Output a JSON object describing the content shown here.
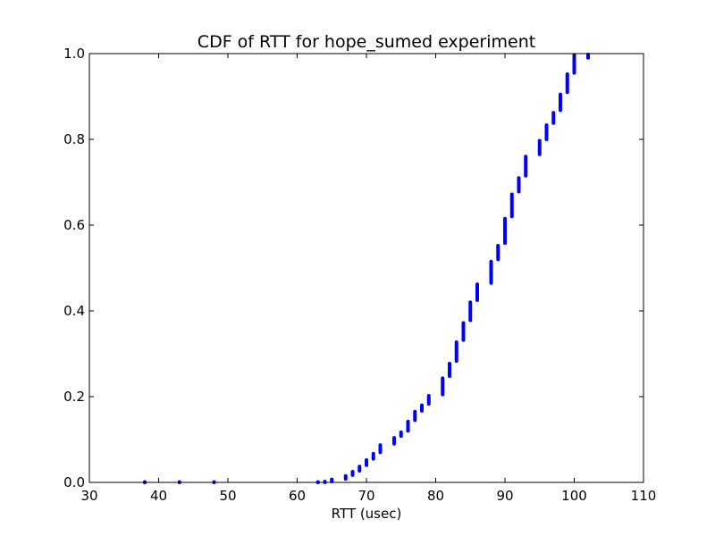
{
  "chart_data": {
    "type": "scatter",
    "title": "CDF of RTT for hope_sumed experiment",
    "xlabel": "RTT (usec)",
    "ylabel": "",
    "xlim": [
      30,
      110
    ],
    "ylim": [
      0.0,
      1.0
    ],
    "x_ticks": [
      "30",
      "40",
      "50",
      "60",
      "70",
      "80",
      "90",
      "100",
      "110"
    ],
    "y_ticks": [
      "0.0",
      "0.2",
      "0.4",
      "0.6",
      "0.8",
      "1.0"
    ],
    "grid": false,
    "legend": false,
    "color": "#0000ff",
    "series": [
      {
        "ranges": [
          {
            "x": 38,
            "y": [
              0.0,
              0.0
            ]
          },
          {
            "x": 43,
            "y": [
              0.0,
              0.0
            ]
          },
          {
            "x": 48,
            "y": [
              0.0,
              0.0
            ]
          },
          {
            "x": 63,
            "y": [
              0.0,
              0.0
            ]
          },
          {
            "x": 64,
            "y": [
              0.0,
              0.002
            ]
          },
          {
            "x": 65,
            "y": [
              0.002,
              0.007
            ]
          },
          {
            "x": 67,
            "y": [
              0.008,
              0.015
            ]
          },
          {
            "x": 68,
            "y": [
              0.017,
              0.025
            ]
          },
          {
            "x": 69,
            "y": [
              0.027,
              0.037
            ]
          },
          {
            "x": 70,
            "y": [
              0.04,
              0.052
            ]
          },
          {
            "x": 71,
            "y": [
              0.055,
              0.067
            ]
          },
          {
            "x": 72,
            "y": [
              0.07,
              0.087
            ]
          },
          {
            "x": 74,
            "y": [
              0.09,
              0.104
            ]
          },
          {
            "x": 75,
            "y": [
              0.108,
              0.117
            ]
          },
          {
            "x": 76,
            "y": [
              0.12,
              0.142
            ]
          },
          {
            "x": 77,
            "y": [
              0.145,
              0.165
            ]
          },
          {
            "x": 78,
            "y": [
              0.167,
              0.18
            ]
          },
          {
            "x": 79,
            "y": [
              0.183,
              0.202
            ]
          },
          {
            "x": 81,
            "y": [
              0.205,
              0.243
            ]
          },
          {
            "x": 82,
            "y": [
              0.248,
              0.277
            ]
          },
          {
            "x": 83,
            "y": [
              0.283,
              0.327
            ]
          },
          {
            "x": 84,
            "y": [
              0.332,
              0.372
            ]
          },
          {
            "x": 85,
            "y": [
              0.378,
              0.42
            ]
          },
          {
            "x": 86,
            "y": [
              0.425,
              0.462
            ]
          },
          {
            "x": 88,
            "y": [
              0.465,
              0.515
            ]
          },
          {
            "x": 89,
            "y": [
              0.52,
              0.552
            ]
          },
          {
            "x": 90,
            "y": [
              0.558,
              0.615
            ]
          },
          {
            "x": 91,
            "y": [
              0.62,
              0.672
            ]
          },
          {
            "x": 92,
            "y": [
              0.678,
              0.71
            ]
          },
          {
            "x": 93,
            "y": [
              0.715,
              0.76
            ]
          },
          {
            "x": 95,
            "y": [
              0.765,
              0.797
            ]
          },
          {
            "x": 96,
            "y": [
              0.8,
              0.833
            ]
          },
          {
            "x": 97,
            "y": [
              0.838,
              0.862
            ]
          },
          {
            "x": 98,
            "y": [
              0.868,
              0.905
            ]
          },
          {
            "x": 99,
            "y": [
              0.91,
              0.952
            ]
          },
          {
            "x": 100,
            "y": [
              0.955,
              0.997
            ]
          },
          {
            "x": 102,
            "y": [
              0.99,
              0.998
            ]
          }
        ]
      }
    ]
  }
}
